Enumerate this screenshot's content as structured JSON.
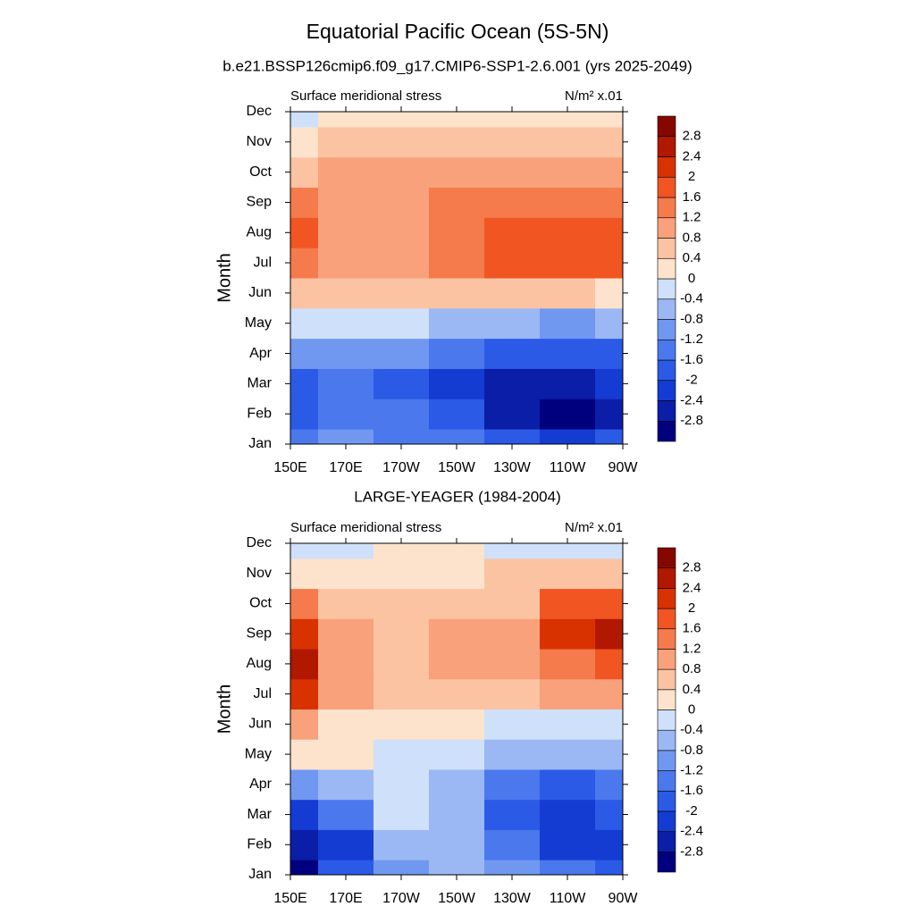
{
  "title": "Equatorial Pacific Ocean (5S-5N)",
  "chart_data": [
    {
      "type": "contour",
      "title": "b.e21.BSSP126cmip6.f09_g17.CMIP6-SSP1-2.6.001 (yrs 2025-2049)",
      "left_label": "Surface meridional stress",
      "right_label": "N/m² x.01",
      "ylabel": "Month",
      "x": [
        150,
        170,
        190,
        210,
        230,
        250,
        270
      ],
      "xlim": [
        150,
        270
      ],
      "xticks": [
        {
          "value": 150,
          "label": "150E"
        },
        {
          "value": 170,
          "label": "170E"
        },
        {
          "value": 190,
          "label": "170W"
        },
        {
          "value": 210,
          "label": "150W"
        },
        {
          "value": 230,
          "label": "130W"
        },
        {
          "value": 250,
          "label": "110W"
        },
        {
          "value": 270,
          "label": "90W"
        }
      ],
      "categories": [
        "Jan",
        "Feb",
        "Mar",
        "Apr",
        "May",
        "Jun",
        "Jul",
        "Aug",
        "Sep",
        "Oct",
        "Nov",
        "Dec"
      ],
      "values": [
        [
          -1.4,
          -1.2,
          -1.3,
          -1.5,
          -1.8,
          -2.2,
          -2.0
        ],
        [
          -1.7,
          -1.5,
          -1.6,
          -2.0,
          -2.5,
          -3.0,
          -2.6
        ],
        [
          -1.8,
          -1.6,
          -1.7,
          -2.1,
          -2.6,
          -2.8,
          -2.4
        ],
        [
          -1.0,
          -1.0,
          -1.1,
          -1.3,
          -1.7,
          -1.9,
          -1.7
        ],
        [
          -0.2,
          -0.3,
          -0.3,
          -0.5,
          -0.7,
          -0.9,
          -0.8
        ],
        [
          0.7,
          0.6,
          0.5,
          0.5,
          0.4,
          0.4,
          0.3
        ],
        [
          1.4,
          1.0,
          1.0,
          1.3,
          1.6,
          1.8,
          1.7
        ],
        [
          1.8,
          1.1,
          1.1,
          1.4,
          1.7,
          1.8,
          1.7
        ],
        [
          1.5,
          1.1,
          1.1,
          1.3,
          1.4,
          1.5,
          1.4
        ],
        [
          0.7,
          0.8,
          0.9,
          1.0,
          1.0,
          1.1,
          1.0
        ],
        [
          0.3,
          0.4,
          0.4,
          0.5,
          0.5,
          0.5,
          0.5
        ],
        [
          -0.1,
          0.2,
          0.3,
          0.3,
          0.3,
          0.3,
          0.3
        ]
      ],
      "levels": [
        -2.8,
        -2.4,
        -2,
        -1.6,
        -1.2,
        -0.8,
        -0.4,
        0,
        0.4,
        0.8,
        1.2,
        1.6,
        2,
        2.4,
        2.8
      ],
      "colors": [
        "#00007f",
        "#0a1ea8",
        "#143cd2",
        "#2b5ae6",
        "#4b78ec",
        "#7198f0",
        "#9bb8f4",
        "#cfe0fa",
        "#fde3cc",
        "#fbc3a2",
        "#f9a17a",
        "#f57a4c",
        "#f05522",
        "#d83200",
        "#b01800",
        "#860600"
      ]
    },
    {
      "type": "contour",
      "title": "LARGE-YEAGER (1984-2004)",
      "left_label": "Surface meridional stress",
      "right_label": "N/m² x.01",
      "ylabel": "Month",
      "x": [
        150,
        170,
        190,
        210,
        230,
        250,
        270
      ],
      "xlim": [
        150,
        270
      ],
      "xticks": [
        {
          "value": 150,
          "label": "150E"
        },
        {
          "value": 170,
          "label": "170E"
        },
        {
          "value": 190,
          "label": "170W"
        },
        {
          "value": 210,
          "label": "150W"
        },
        {
          "value": 230,
          "label": "130W"
        },
        {
          "value": 250,
          "label": "110W"
        },
        {
          "value": 270,
          "label": "90W"
        }
      ],
      "categories": [
        "Jan",
        "Feb",
        "Mar",
        "Apr",
        "May",
        "Jun",
        "Jul",
        "Aug",
        "Sep",
        "Oct",
        "Nov",
        "Dec"
      ],
      "values": [
        [
          -3.0,
          -1.8,
          -1.0,
          -0.6,
          -1.2,
          -1.6,
          -1.8
        ],
        [
          -2.8,
          -2.2,
          -0.8,
          -0.7,
          -1.4,
          -2.2,
          -2.4
        ],
        [
          -2.4,
          -1.4,
          -0.4,
          -0.8,
          -1.8,
          -2.4,
          -2.0
        ],
        [
          -1.2,
          -0.6,
          -0.2,
          -0.6,
          -1.4,
          -1.8,
          -1.4
        ],
        [
          0.2,
          0.2,
          -0.2,
          -0.4,
          -0.6,
          -0.7,
          -0.6
        ],
        [
          1.0,
          0.3,
          0.2,
          0.0,
          -0.1,
          -0.2,
          -0.2
        ],
        [
          2.0,
          0.9,
          0.6,
          0.6,
          0.5,
          0.8,
          0.9
        ],
        [
          2.6,
          1.0,
          0.7,
          0.8,
          0.9,
          1.5,
          1.7
        ],
        [
          2.2,
          1.0,
          0.6,
          0.9,
          0.8,
          2.0,
          2.4
        ],
        [
          1.2,
          0.7,
          0.4,
          0.6,
          0.7,
          1.6,
          1.7
        ],
        [
          0.2,
          0.2,
          0.2,
          0.3,
          0.5,
          0.6,
          0.5
        ],
        [
          -0.2,
          -0.1,
          0.1,
          0.2,
          -0.1,
          -0.2,
          -0.3
        ]
      ],
      "levels": [
        -2.8,
        -2.4,
        -2,
        -1.6,
        -1.2,
        -0.8,
        -0.4,
        0,
        0.4,
        0.8,
        1.2,
        1.6,
        2,
        2.4,
        2.8
      ],
      "colors": [
        "#00007f",
        "#0a1ea8",
        "#143cd2",
        "#2b5ae6",
        "#4b78ec",
        "#7198f0",
        "#9bb8f4",
        "#cfe0fa",
        "#fde3cc",
        "#fbc3a2",
        "#f9a17a",
        "#f57a4c",
        "#f05522",
        "#d83200",
        "#b01800",
        "#860600"
      ]
    }
  ]
}
